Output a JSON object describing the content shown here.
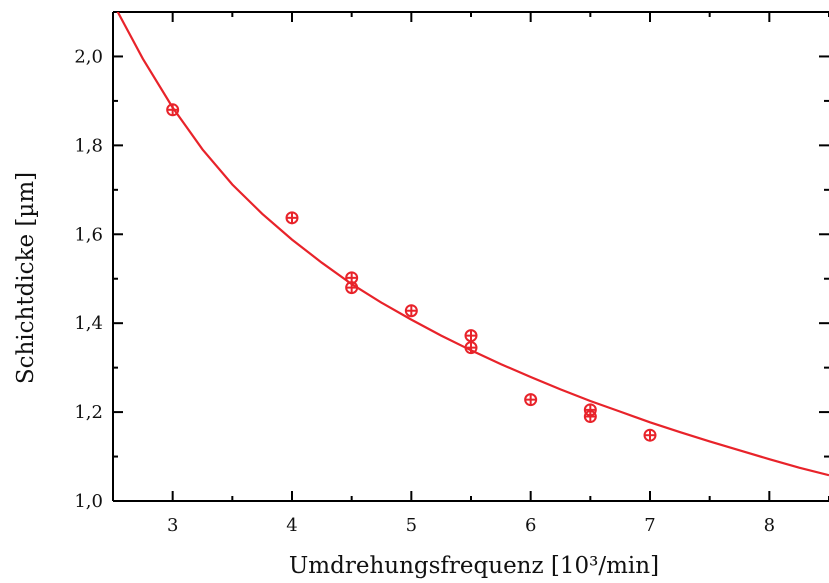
{
  "chart_data": {
    "type": "scatter",
    "xlabel": "Umdrehungsfrequenz [10³/min]",
    "ylabel": "Schichtdicke [µm]",
    "xlim": [
      2.5,
      8.5
    ],
    "ylim": [
      1.0,
      2.1
    ],
    "x_ticks": [
      3,
      4,
      5,
      6,
      7,
      8
    ],
    "x_tick_labels": [
      "3",
      "4",
      "5",
      "6",
      "7",
      "8"
    ],
    "y_ticks": [
      1.0,
      1.2,
      1.4,
      1.6,
      1.8,
      2.0
    ],
    "y_tick_labels": [
      "1,0",
      "1,2",
      "1,4",
      "1,6",
      "1,8",
      "2,0"
    ],
    "grid": false,
    "legend": "none",
    "series": [
      {
        "kind": "points",
        "color": "#e8232a",
        "marker": "circle-with-errorbar",
        "x": [
          3,
          4,
          4.5,
          4.5,
          5,
          5.5,
          5.5,
          6,
          6.5,
          6.5,
          7
        ],
        "y": [
          1.88,
          1.637,
          1.502,
          1.48,
          1.428,
          1.372,
          1.345,
          1.228,
          1.205,
          1.19,
          1.148
        ],
        "yerr": [
          0.005,
          0.005,
          0.005,
          0.005,
          0.005,
          0.005,
          0.005,
          0.005,
          0.005,
          0.005,
          0.005
        ]
      },
      {
        "kind": "fit-curve",
        "color": "#e8232a",
        "x": [
          2.5,
          2.75,
          3,
          3.25,
          3.5,
          3.75,
          4,
          4.25,
          4.5,
          4.75,
          5,
          5.25,
          5.5,
          5.75,
          6,
          6.25,
          6.5,
          6.75,
          7,
          7.25,
          7.5,
          7.75,
          8,
          8.25,
          8.5
        ],
        "y": [
          2.12,
          1.995,
          1.885,
          1.791,
          1.712,
          1.646,
          1.588,
          1.536,
          1.488,
          1.446,
          1.408,
          1.372,
          1.339,
          1.308,
          1.279,
          1.251,
          1.225,
          1.201,
          1.177,
          1.155,
          1.134,
          1.114,
          1.094,
          1.075,
          1.058
        ]
      }
    ]
  }
}
